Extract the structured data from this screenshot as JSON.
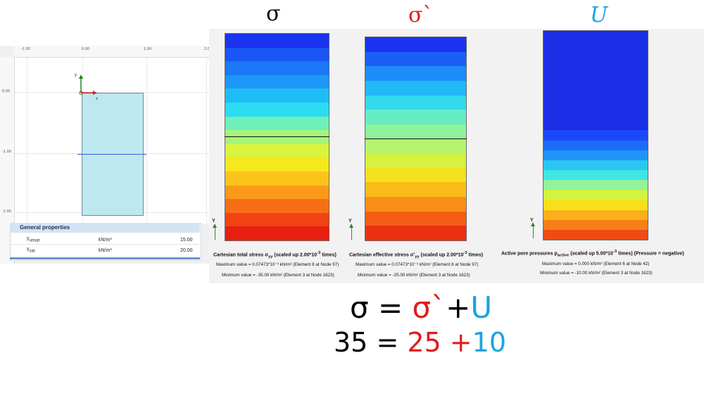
{
  "titles": {
    "sigma": "σ",
    "sigma_eff": "σ`",
    "pore": "U"
  },
  "model": {
    "ticks_x": [
      "-1.00",
      "0.00",
      "1.00",
      "2.0"
    ],
    "ticks_y": [
      "0.00",
      "-1.00",
      "-2.00"
    ],
    "axis_y_label": "y",
    "axis_x_label": "x",
    "general_properties": {
      "title": "General properties",
      "rows": [
        {
          "symbol": "γ",
          "sub": "unsat",
          "unit": "kN/m³",
          "value": "15.00"
        },
        {
          "symbol": "γ",
          "sub": "sat",
          "unit": "kN/m³",
          "value": "20.00"
        }
      ]
    }
  },
  "results": [
    {
      "title_main": "Cartesian total stress σ",
      "title_sub": "yy",
      "title_rest": " (scaled up 2.00*10",
      "title_exp": "-3",
      "title_end": " times)",
      "max": "Maximum value = 0.07473*10⁻³ kN/m² (Element 8 at Node 97)",
      "min": "Minimum value = -35.00 kN/m² (Element 3 at Node 1623)",
      "axis_label": "Y"
    },
    {
      "title_main": "Cartesian effective stress σ'",
      "title_sub": "yy",
      "title_rest": " (scaled up 2.00*10",
      "title_exp": "-3",
      "title_end": " times)",
      "max": "Maximum value = 0.07473*10⁻³ kN/m² (Element 8 at Node 97)",
      "min": "Minimum value = -25.00 kN/m² (Element 3 at Node 1623)",
      "axis_label": "Y"
    },
    {
      "title_main": "Active pore pressures p",
      "title_sub": "active",
      "title_rest": " (scaled up 5.00*10",
      "title_exp": "-3",
      "title_end": " times) (Pressure = negative)",
      "max": "Maximum value = 0.000 kN/m² (Element 6 at Node 42)",
      "min": "Minimum value = -10.00 kN/m² (Element 3 at Node 1623)",
      "axis_label": "Y"
    }
  ],
  "colors": {
    "sigma_title": "#000000",
    "sigma_eff_title": "#e01b1b",
    "pore_title": "#1aa3e0",
    "bands_sigma": [
      "#1a33f0",
      "#1a55f5",
      "#1b78f7",
      "#1c98f8",
      "#1fbdf6",
      "#2cdcf0",
      "#6ef0ba",
      "#a6f47a",
      "#d8f43c",
      "#f5e81c",
      "#fbc41a",
      "#fb9a18",
      "#f86e16",
      "#f24313",
      "#e81f10"
    ],
    "bands_sigma_eff": [
      "#1a33f0",
      "#1b60f6",
      "#1d8df8",
      "#22b8f6",
      "#33daee",
      "#66ecc4",
      "#8ef39b",
      "#b5f46c",
      "#d6f140",
      "#f3e21d",
      "#fabc1a",
      "#f98f17",
      "#f45d14",
      "#eb2f11"
    ],
    "bands_pore": [
      "#1b49f7",
      "#1c6cf8",
      "#1f95f8",
      "#2cc6f3",
      "#3fe6e4",
      "#92f39a",
      "#d3f33f",
      "#f7df1c",
      "#fbb01a",
      "#f77f17",
      "#ee4c14"
    ]
  },
  "equation": {
    "line1": {
      "a": "σ",
      "eq": " = ",
      "b": "σ`",
      "plus": "+",
      "c": "U"
    },
    "line2": {
      "a": "35",
      "eq": " = ",
      "b": "25",
      "plus": " +",
      "c": "10"
    }
  }
}
